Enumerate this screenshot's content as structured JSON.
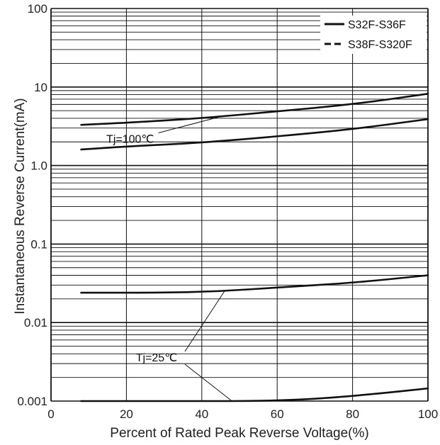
{
  "chart_data": {
    "type": "line",
    "title": "",
    "xlabel": "Percent of Rated Peak Reverse Voltage(%)",
    "ylabel": "Instantaneous Reverse Current(mA)",
    "xlim": [
      0,
      100
    ],
    "ylim": [
      0.001,
      100
    ],
    "yscale": "log",
    "grid": true,
    "x_ticks": [
      "0",
      "20",
      "40",
      "60",
      "80",
      "100"
    ],
    "y_ticks": [
      "0.001",
      "0.01",
      "0.1",
      "1.0",
      "10",
      "100"
    ],
    "legend": {
      "position": "top-right",
      "entries": [
        {
          "name": "S32F-S36F",
          "style": "solid"
        },
        {
          "name": "S38F-S320F",
          "style": "dashed"
        }
      ]
    },
    "series": [
      {
        "values": [
          [
            8,
            3.3
          ],
          [
            20,
            3.5
          ],
          [
            40,
            4.0
          ],
          [
            60,
            4.9
          ],
          [
            80,
            6.0
          ],
          [
            100,
            8.2
          ]
        ]
      },
      {
        "values": [
          [
            8,
            1.6
          ],
          [
            20,
            1.75
          ],
          [
            40,
            1.95
          ],
          [
            60,
            2.35
          ],
          [
            80,
            2.9
          ],
          [
            100,
            3.9
          ]
        ]
      },
      {
        "values": [
          [
            8,
            0.024
          ],
          [
            30,
            0.024
          ],
          [
            45,
            0.025
          ],
          [
            60,
            0.028
          ],
          [
            80,
            0.032
          ],
          [
            100,
            0.04
          ]
        ]
      },
      {
        "values": [
          [
            8,
            0.001
          ],
          [
            40,
            0.001
          ],
          [
            55,
            0.001
          ],
          [
            70,
            0.00106
          ],
          [
            85,
            0.00122
          ],
          [
            100,
            0.00145
          ]
        ]
      }
    ],
    "annotations": [
      {
        "text": "Tj=100℃",
        "x": 21,
        "y": 1.95,
        "points_to": [
          [
            45,
            4.2
          ]
        ]
      },
      {
        "text": "Tj=25℃",
        "x": 28,
        "y": 0.0032,
        "points_to": [
          [
            46,
            0.025
          ],
          [
            48,
            0.001
          ]
        ]
      }
    ]
  }
}
